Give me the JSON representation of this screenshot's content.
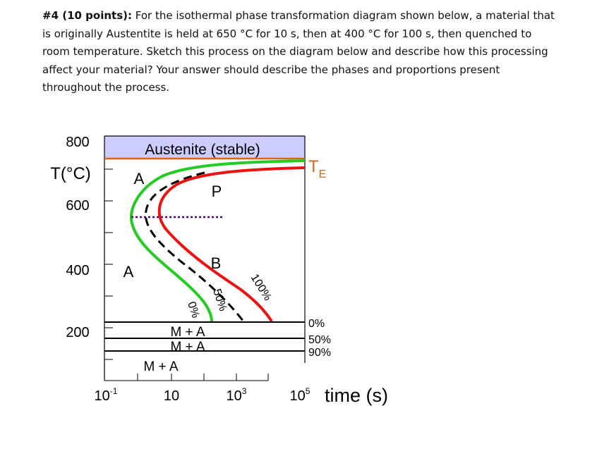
{
  "question": {
    "label": "#4 (10 points):",
    "lines": [
      " For the isothermal phase transformation diagram shown below, a material that",
      "is originally Austentite is held at 650 °C for 10 s, then at 400 °C for 100 s, then quenched to",
      "room temperature. Sketch this process on the diagram below and describe how this processing",
      "affect your material? Your answer should describe the phases and proportions present",
      "throughout the process."
    ]
  },
  "diagram": {
    "y_axis": {
      "title": "T(°C)",
      "ticks": [
        "800",
        "600",
        "400",
        "200"
      ]
    },
    "x_axis": {
      "title": "time (s)",
      "ticks": [
        {
          "base": "10",
          "exp": "-1"
        },
        {
          "base": "10"
        },
        {
          "base": "10",
          "exp": "3"
        },
        {
          "base": "10",
          "exp": "5"
        }
      ]
    },
    "austenite_stable": "Austenite (stable)",
    "te": {
      "base": "T",
      "sub": "E"
    },
    "phase_labels": {
      "a_upper": "A",
      "a_lower": "A",
      "p": "P",
      "b": "B"
    },
    "curve_labels": {
      "start": "0%",
      "half": "50%",
      "finish": "100%"
    },
    "martensite": {
      "ma_1": "M + A",
      "ma_2": "M + A",
      "ma_3": "M + A",
      "levels": [
        "0%",
        "50%",
        "90%"
      ]
    }
  }
}
